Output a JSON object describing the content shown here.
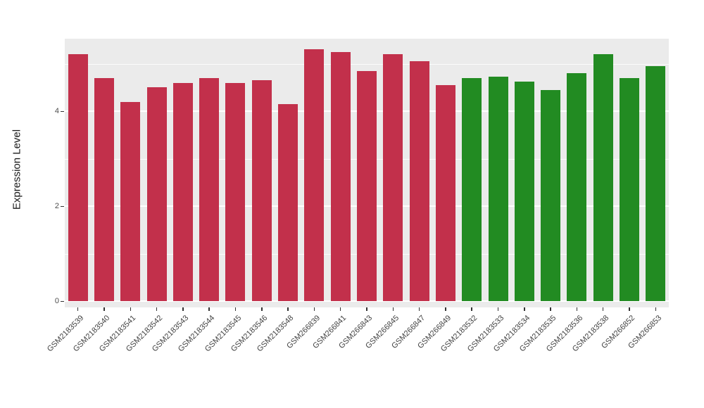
{
  "figure": {
    "background": "#FFFFFF",
    "panel_background": "#EBEBEB",
    "gridline_color": "#FFFFFF",
    "axis_text_color": "#4D4D4D"
  },
  "chart_data": {
    "type": "bar",
    "title": "",
    "xlabel": "",
    "ylabel": "Expression Level",
    "ylim": [
      0,
      5.5
    ],
    "yticks": [
      0,
      2,
      4
    ],
    "yticks_minor": [
      1,
      3,
      5
    ],
    "grid": "white major and minor horizontal lines on gray panel",
    "legend": "none",
    "categories": [
      "GSM2183539",
      "GSM2183540",
      "GSM2183541",
      "GSM2183542",
      "GSM2183543",
      "GSM2183544",
      "GSM2183545",
      "GSM2183546",
      "GSM2183548",
      "GSM266839",
      "GSM266841",
      "GSM266843",
      "GSM266845",
      "GSM266847",
      "GSM266849",
      "GSM2183532",
      "GSM2183533",
      "GSM2183534",
      "GSM2183535",
      "GSM2183536",
      "GSM2183538",
      "GSM266852",
      "GSM266853"
    ],
    "values": [
      5.2,
      4.7,
      4.2,
      4.5,
      4.6,
      4.7,
      4.6,
      4.65,
      4.15,
      5.3,
      5.25,
      4.85,
      5.2,
      5.05,
      4.55,
      4.7,
      4.72,
      4.62,
      4.45,
      4.8,
      5.2,
      4.7,
      4.95
    ],
    "group_colors": {
      "red": "#C2304B",
      "green": "#228B22"
    },
    "colors": [
      "#C2304B",
      "#C2304B",
      "#C2304B",
      "#C2304B",
      "#C2304B",
      "#C2304B",
      "#C2304B",
      "#C2304B",
      "#C2304B",
      "#C2304B",
      "#C2304B",
      "#C2304B",
      "#C2304B",
      "#C2304B",
      "#C2304B",
      "#228B22",
      "#228B22",
      "#228B22",
      "#228B22",
      "#228B22",
      "#228B22",
      "#228B22",
      "#228B22"
    ]
  }
}
